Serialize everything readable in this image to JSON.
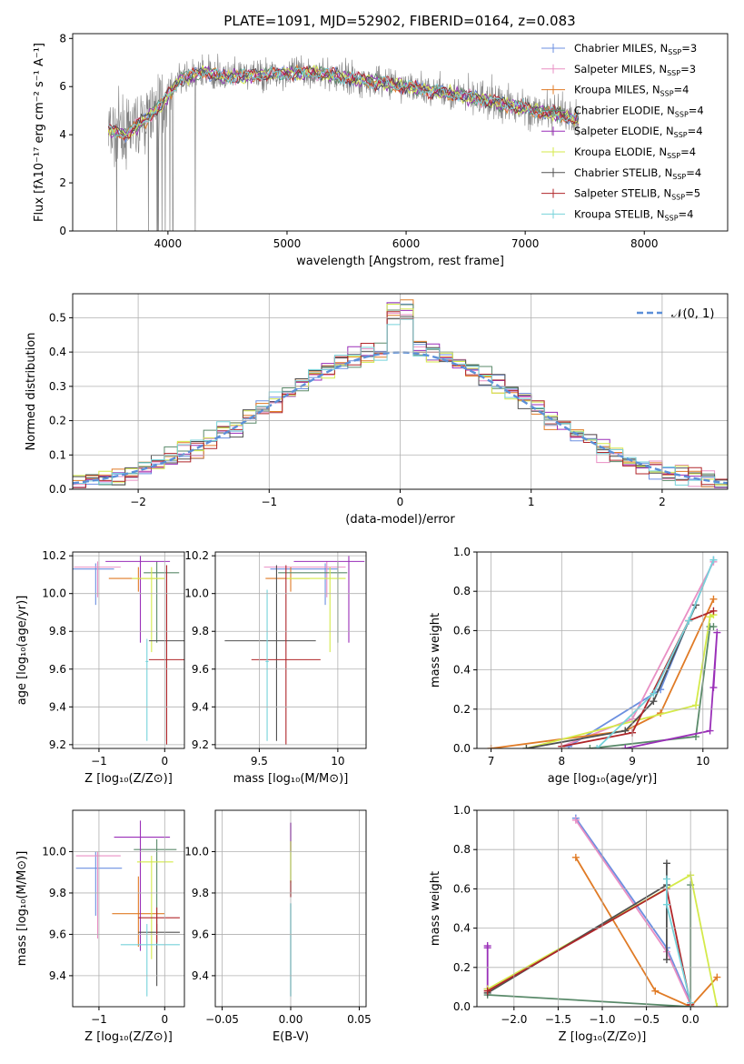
{
  "figure_title": "PLATE=1091, MJD=52902, FIBERID=0164, z=0.083",
  "series": [
    {
      "name": "Chabrier MILES",
      "nssp": "3",
      "color": "#6b8fe0"
    },
    {
      "name": "Salpeter MILES",
      "nssp": "3",
      "color": "#e98fc4"
    },
    {
      "name": "Kroupa MILES",
      "nssp": "4",
      "color": "#e07b26"
    },
    {
      "name": "Chabrier ELODIE",
      "nssp": "4",
      "color": "#5a8a6a"
    },
    {
      "name": "Salpeter ELODIE",
      "nssp": "4",
      "color": "#9a2fb8"
    },
    {
      "name": "Kroupa ELODIE",
      "nssp": "4",
      "color": "#d4ea4a"
    },
    {
      "name": "Chabrier STELIB",
      "nssp": "4",
      "color": "#505050"
    },
    {
      "name": "Salpeter STELIB",
      "nssp": "5",
      "color": "#b0262a"
    },
    {
      "name": "Kroupa STELIB",
      "nssp": "4",
      "color": "#76d2da"
    }
  ],
  "chart_data": [
    {
      "id": "spectrum",
      "type": "line",
      "title": "PLATE=1091, MJD=52902, FIBERID=0164, z=0.083",
      "xlabel": "wavelength [Angstrom, rest frame]",
      "ylabel": "Flux [fλ10⁻¹⁷ erg cm⁻² s⁻¹ A⁻¹]",
      "xlim": [
        3200,
        8700
      ],
      "ylim": [
        0,
        8.2
      ],
      "xticks": [
        4000,
        5000,
        6000,
        7000,
        8000
      ],
      "yticks": [
        0,
        2,
        4,
        6,
        8
      ],
      "data_color": "#808080",
      "continuum": {
        "x": [
          3500,
          3650,
          3800,
          3950,
          4100,
          4300,
          4500,
          4800,
          5200,
          5600,
          6000,
          6500,
          7000,
          7400
        ],
        "y": [
          4.2,
          4.0,
          4.6,
          5.3,
          6.3,
          6.6,
          6.4,
          6.5,
          6.6,
          6.3,
          6.0,
          5.6,
          5.1,
          4.7
        ]
      },
      "legend_position": "upper right"
    },
    {
      "id": "residuals",
      "type": "step",
      "xlabel": "(data-model)/error",
      "ylabel": "Normed distribution",
      "xlim": [
        -2.5,
        2.5
      ],
      "ylim": [
        0,
        0.57
      ],
      "xticks": [
        -2,
        -1,
        0,
        1,
        2
      ],
      "yticks": [
        0.0,
        0.1,
        0.2,
        0.3,
        0.4,
        0.5
      ],
      "reference_label": "𝒩(0, 1)",
      "reference_color": "#5b8fd8",
      "bin_width": 0.1,
      "legend_position": "upper right"
    },
    {
      "id": "age-vs-z",
      "type": "errorbar",
      "xlabel": "Z [log₁₀(Z/Z⊙)]",
      "ylabel": "age  [log₁₀(age/yr)]",
      "xlim": [
        -1.4,
        0.3
      ],
      "ylim": [
        9.18,
        10.22
      ],
      "xticks": [
        -1,
        0
      ],
      "yticks": [
        9.2,
        9.4,
        9.6,
        9.8,
        10.0,
        10.2
      ],
      "points": [
        {
          "s": 0,
          "x": -1.05,
          "xerr": [
            0.38,
            0.28
          ],
          "y": 10.13,
          "yerr": [
            0.19,
            0.03
          ]
        },
        {
          "s": 1,
          "x": -1.02,
          "xerr": [
            0.36,
            0.35
          ],
          "y": 10.14,
          "yerr": [
            0.16,
            0.03
          ]
        },
        {
          "s": 2,
          "x": -0.4,
          "xerr": [
            0.45,
            0.4
          ],
          "y": 10.08,
          "yerr": [
            0.07,
            0.06
          ]
        },
        {
          "s": 3,
          "x": -0.12,
          "xerr": [
            0.2,
            0.34
          ],
          "y": 10.11,
          "yerr": [
            0.37,
            0.06
          ]
        },
        {
          "s": 4,
          "x": -0.37,
          "xerr": [
            0.53,
            0.45
          ],
          "y": 10.17,
          "yerr": [
            0.43,
            0.03
          ]
        },
        {
          "s": 5,
          "x": -0.2,
          "xerr": [
            0.3,
            0.2
          ],
          "y": 10.08,
          "yerr": [
            0.39,
            0.06
          ]
        },
        {
          "s": 6,
          "x": 0.03,
          "xerr": [
            0.27,
            0.27
          ],
          "y": 9.75,
          "yerr": [
            0.53,
            0.4
          ]
        },
        {
          "s": 7,
          "x": 0.03,
          "xerr": [
            0.27,
            0.27
          ],
          "y": 9.65,
          "yerr": [
            0.45,
            0.5
          ]
        },
        {
          "s": 8,
          "x": -0.27,
          "xerr": [
            0.02,
            0.02
          ],
          "y": 9.64,
          "yerr": [
            0.42,
            0.12
          ]
        }
      ]
    },
    {
      "id": "age-vs-mass",
      "type": "errorbar",
      "xlabel": "mass [log₁₀(M/M⊙)]",
      "ylabel": "",
      "xlim": [
        9.22,
        10.18
      ],
      "ylim": [
        9.18,
        10.22
      ],
      "xticks": [
        9.5,
        10.0
      ],
      "yticks": [
        9.2,
        9.4,
        9.6,
        9.8,
        10.0,
        10.2
      ],
      "points": [
        {
          "s": 0,
          "x": 9.92,
          "xerr": [
            0.35,
            0.08
          ],
          "y": 10.13,
          "yerr": [
            0.19,
            0.03
          ]
        },
        {
          "s": 1,
          "x": 9.93,
          "xerr": [
            0.4,
            0.12
          ],
          "y": 10.14,
          "yerr": [
            0.16,
            0.03
          ]
        },
        {
          "s": 2,
          "x": 9.7,
          "xerr": [
            0.16,
            0.12
          ],
          "y": 10.08,
          "yerr": [
            0.07,
            0.06
          ]
        },
        {
          "s": 3,
          "x": 10.0,
          "xerr": [
            0.38,
            0.06
          ],
          "y": 10.11,
          "yerr": [
            0.37,
            0.06
          ]
        },
        {
          "s": 4,
          "x": 10.07,
          "xerr": [
            0.35,
            0.1
          ],
          "y": 10.17,
          "yerr": [
            0.43,
            0.03
          ]
        },
        {
          "s": 5,
          "x": 9.95,
          "xerr": [
            0.28,
            0.1
          ],
          "y": 10.08,
          "yerr": [
            0.39,
            0.06
          ]
        },
        {
          "s": 6,
          "x": 9.61,
          "xerr": [
            0.33,
            0.25
          ],
          "y": 9.75,
          "yerr": [
            0.53,
            0.4
          ]
        },
        {
          "s": 7,
          "x": 9.67,
          "xerr": [
            0.22,
            0.22
          ],
          "y": 9.65,
          "yerr": [
            0.45,
            0.5
          ]
        },
        {
          "s": 8,
          "x": 9.55,
          "xerr": [
            0.01,
            0.01
          ],
          "y": 9.64,
          "yerr": [
            0.42,
            0.38
          ]
        }
      ]
    },
    {
      "id": "weight-vs-age",
      "type": "line",
      "xlabel": "age  [log₁₀(age/yr)]",
      "ylabel": "mass weight",
      "xlim": [
        6.8,
        10.35
      ],
      "ylim": [
        0,
        1.0
      ],
      "xticks": [
        7,
        8,
        9,
        10
      ],
      "yticks": [
        0.0,
        0.2,
        0.4,
        0.6,
        0.8,
        1.0
      ],
      "series_points": [
        {
          "s": 0,
          "x": [
            8.1,
            9.4,
            10.15
          ],
          "y": [
            0.01,
            0.3,
            0.96
          ]
        },
        {
          "s": 1,
          "x": [
            8.0,
            9.0,
            10.15
          ],
          "y": [
            0.01,
            0.15,
            0.95
          ]
        },
        {
          "s": 2,
          "x": [
            7.0,
            8.9,
            9.4,
            10.15
          ],
          "y": [
            0.0,
            0.09,
            0.18,
            0.76
          ]
        },
        {
          "s": 3,
          "x": [
            8.4,
            9.9,
            10.1,
            10.15
          ],
          "y": [
            0.0,
            0.06,
            0.62,
            0.62
          ]
        },
        {
          "s": 4,
          "x": [
            8.9,
            10.1,
            10.2,
            10.15
          ],
          "y": [
            0.0,
            0.09,
            0.59,
            0.31
          ]
        },
        {
          "s": 5,
          "x": [
            7.5,
            9.9,
            10.1,
            10.15
          ],
          "y": [
            0.0,
            0.22,
            0.67,
            0.68
          ]
        },
        {
          "s": 6,
          "x": [
            7.5,
            8.9,
            9.3,
            9.9
          ],
          "y": [
            0.0,
            0.09,
            0.24,
            0.73
          ]
        },
        {
          "s": 7,
          "x": [
            8.0,
            9.0,
            9.8,
            10.15
          ],
          "y": [
            0.01,
            0.08,
            0.65,
            0.7
          ]
        },
        {
          "s": 8,
          "x": [
            8.5,
            9.3,
            9.8,
            10.15
          ],
          "y": [
            0.0,
            0.28,
            0.65,
            0.96
          ]
        }
      ]
    },
    {
      "id": "mass-vs-z",
      "type": "errorbar",
      "xlabel": "Z [log₁₀(Z/Z⊙)]",
      "ylabel": "mass [log₁₀(M/M⊙)]",
      "xlim": [
        -1.4,
        0.3
      ],
      "ylim": [
        9.25,
        10.2
      ],
      "xticks": [
        -1,
        0
      ],
      "yticks": [
        9.4,
        9.6,
        9.8,
        10.0
      ],
      "points": [
        {
          "s": 0,
          "x": -1.05,
          "xerr": [
            0.3,
            0.4
          ],
          "y": 9.92,
          "yerr": [
            0.23,
            0.08
          ]
        },
        {
          "s": 1,
          "x": -1.02,
          "xerr": [
            0.33,
            0.35
          ],
          "y": 9.98,
          "yerr": [
            0.4,
            0.02
          ]
        },
        {
          "s": 2,
          "x": -0.4,
          "xerr": [
            0.4,
            0.4
          ],
          "y": 9.7,
          "yerr": [
            0.16,
            0.18
          ]
        },
        {
          "s": 3,
          "x": -0.12,
          "xerr": [
            0.35,
            0.3
          ],
          "y": 10.01,
          "yerr": [
            0.4,
            0.05
          ]
        },
        {
          "s": 4,
          "x": -0.37,
          "xerr": [
            0.4,
            0.45
          ],
          "y": 10.07,
          "yerr": [
            0.55,
            0.08
          ]
        },
        {
          "s": 5,
          "x": -0.2,
          "xerr": [
            0.22,
            0.33
          ],
          "y": 9.95,
          "yerr": [
            0.47,
            0.03
          ]
        },
        {
          "s": 6,
          "x": -0.12,
          "xerr": [
            0.28,
            0.35
          ],
          "y": 9.61,
          "yerr": [
            0.26,
            0.04
          ]
        },
        {
          "s": 7,
          "x": -0.12,
          "xerr": [
            0.28,
            0.35
          ],
          "y": 9.68,
          "yerr": [
            0.12,
            0.05
          ]
        },
        {
          "s": 8,
          "x": -0.27,
          "xerr": [
            0.4,
            0.5
          ],
          "y": 9.55,
          "yerr": [
            0.25,
            0.1
          ]
        }
      ]
    },
    {
      "id": "mass-vs-ebv",
      "type": "errorbar",
      "xlabel": "E(B-V)",
      "ylabel": "",
      "xlim": [
        -0.055,
        0.055
      ],
      "ylim": [
        9.25,
        10.2
      ],
      "xticks": [
        -0.05,
        0.0,
        0.05
      ],
      "xticklabels": [
        "−0.05",
        "0.00",
        "0.05"
      ],
      "yticks": [
        9.4,
        9.6,
        9.8,
        10.0
      ],
      "points": [
        {
          "s": 4,
          "x": 0.0,
          "xerr": [
            0,
            0
          ],
          "y": 10.07,
          "yerr": [
            0.07,
            0.07
          ]
        },
        {
          "s": 5,
          "x": 0.0,
          "xerr": [
            0,
            0
          ],
          "y": 9.95,
          "yerr": [
            0.1,
            0.1
          ]
        },
        {
          "s": 7,
          "x": 0.0,
          "xerr": [
            0,
            0
          ],
          "y": 9.82,
          "yerr": [
            0.04,
            0.04
          ]
        },
        {
          "s": 8,
          "x": 0.0,
          "xerr": [
            0,
            0
          ],
          "y": 9.55,
          "yerr": [
            0.25,
            0.2
          ]
        }
      ]
    },
    {
      "id": "weight-vs-z",
      "type": "line",
      "xlabel": "Z [log₁₀(Z/Z⊙)]",
      "ylabel": "mass weight",
      "xlim": [
        -2.42,
        0.42
      ],
      "ylim": [
        0,
        1.0
      ],
      "xticks": [
        -2.0,
        -1.5,
        -1.0,
        -0.5,
        0.0
      ],
      "xticklabels": [
        "−2.0",
        "−1.5",
        "−1.0",
        "−0.5",
        "0.0"
      ],
      "yticks": [
        0.0,
        0.2,
        0.4,
        0.6,
        0.8,
        1.0
      ],
      "series_points": [
        {
          "s": 0,
          "x": [
            -1.3,
            -0.27,
            0.0
          ],
          "y": [
            0.96,
            0.3,
            0.02
          ]
        },
        {
          "s": 1,
          "x": [
            -1.3,
            -0.27,
            0.0
          ],
          "y": [
            0.95,
            0.28,
            0.01
          ]
        },
        {
          "s": 2,
          "x": [
            -1.3,
            -0.4,
            0.0,
            0.3
          ],
          "y": [
            0.76,
            0.08,
            0.0,
            0.15
          ]
        },
        {
          "s": 3,
          "x": [
            -2.3,
            0.0,
            0.0
          ],
          "y": [
            0.06,
            0.0,
            0.62
          ]
        },
        {
          "s": 4,
          "x": [
            -2.3,
            -2.3,
            -2.3
          ],
          "y": [
            0.31,
            0.09,
            0.3
          ]
        },
        {
          "s": 5,
          "x": [
            -2.3,
            -0.0,
            0.3
          ],
          "y": [
            0.09,
            0.67,
            0.0
          ]
        },
        {
          "s": 6,
          "x": [
            -2.3,
            -0.27,
            -0.27,
            -0.27
          ],
          "y": [
            0.07,
            0.62,
            0.73,
            0.24
          ]
        },
        {
          "s": 7,
          "x": [
            -2.3,
            -0.27,
            0.0
          ],
          "y": [
            0.08,
            0.6,
            0.01
          ]
        },
        {
          "s": 8,
          "x": [
            -0.27,
            -0.27,
            0.0
          ],
          "y": [
            0.65,
            0.52,
            0.02
          ]
        }
      ]
    }
  ]
}
